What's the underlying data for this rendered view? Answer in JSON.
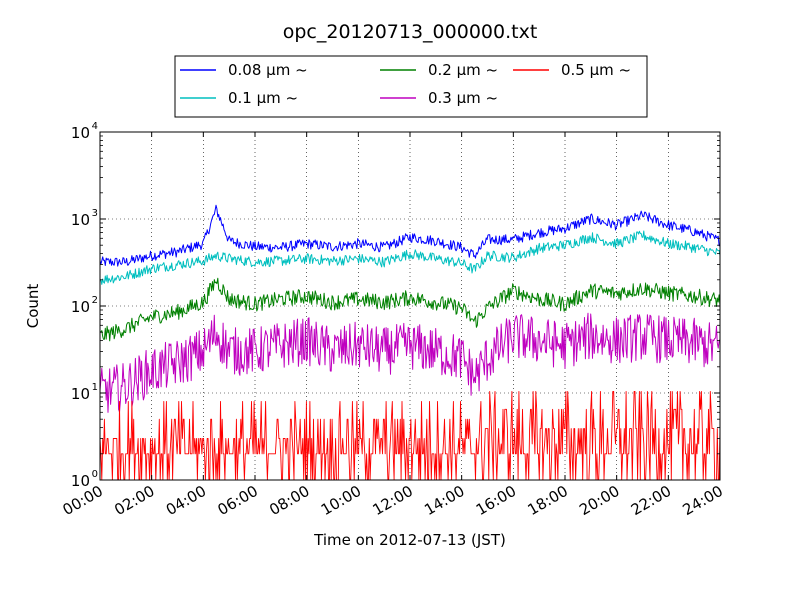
{
  "chart_data": {
    "type": "line",
    "title": "opc_20120713_000000.txt",
    "xlabel": "Time on 2012-07-13 (JST)",
    "ylabel": "Count",
    "xlim": [
      "00:00",
      "24:00"
    ],
    "ylim": [
      1,
      10000
    ],
    "yscale": "log",
    "grid": true,
    "legend_position": "above-plot",
    "x_ticks": [
      "00:00",
      "02:00",
      "04:00",
      "06:00",
      "08:00",
      "10:00",
      "12:00",
      "14:00",
      "16:00",
      "18:00",
      "20:00",
      "22:00",
      "24:00"
    ],
    "y_ticks": [
      {
        "value": 1,
        "base": "10",
        "exp": "0"
      },
      {
        "value": 10,
        "base": "10",
        "exp": "1"
      },
      {
        "value": 100,
        "base": "10",
        "exp": "2"
      },
      {
        "value": 1000,
        "base": "10",
        "exp": "3"
      },
      {
        "value": 10000,
        "base": "10",
        "exp": "4"
      }
    ],
    "x_hours": [
      0,
      1,
      2,
      3,
      4,
      4.5,
      5,
      6,
      7,
      8,
      9,
      10,
      11,
      12,
      13,
      14,
      14.5,
      15,
      16,
      17,
      18,
      19,
      20,
      21,
      22,
      23,
      24
    ],
    "series": [
      {
        "name": "0.08 μm ~",
        "color": "#0000ff",
        "values": [
          320,
          320,
          380,
          420,
          520,
          1300,
          560,
          480,
          470,
          520,
          480,
          520,
          470,
          620,
          560,
          470,
          380,
          580,
          580,
          700,
          780,
          1000,
          850,
          1100,
          850,
          720,
          560
        ]
      },
      {
        "name": "0.1 μm ~",
        "color": "#00bfbf",
        "values": [
          200,
          220,
          270,
          300,
          330,
          380,
          350,
          320,
          330,
          350,
          330,
          350,
          320,
          400,
          350,
          310,
          260,
          380,
          360,
          460,
          500,
          620,
          520,
          650,
          520,
          470,
          400
        ]
      },
      {
        "name": "0.2 μm ~",
        "color": "#008000",
        "values": [
          45,
          55,
          75,
          85,
          110,
          200,
          120,
          105,
          120,
          130,
          110,
          120,
          110,
          125,
          110,
          95,
          65,
          95,
          150,
          120,
          105,
          150,
          140,
          160,
          140,
          130,
          115
        ]
      },
      {
        "name": "0.3 μm ~",
        "color": "#bf00bf",
        "values": [
          10,
          12,
          18,
          22,
          30,
          50,
          30,
          30,
          35,
          40,
          30,
          35,
          30,
          35,
          30,
          25,
          15,
          25,
          45,
          40,
          35,
          45,
          40,
          45,
          40,
          38,
          33
        ]
      },
      {
        "name": "0.5 μm ~",
        "color": "#ff0000",
        "values": [
          2,
          2,
          2,
          2,
          2,
          2,
          2,
          2,
          2,
          2,
          2,
          2,
          2,
          2,
          2,
          2,
          2,
          2.5,
          2.5,
          2.5,
          2.5,
          2.5,
          2.5,
          2.5,
          2.5,
          2,
          2
        ]
      }
    ]
  }
}
